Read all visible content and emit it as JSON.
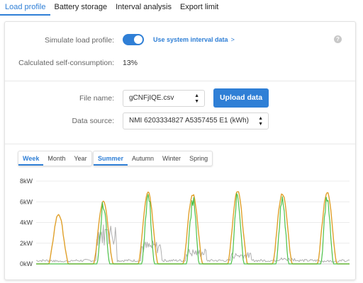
{
  "tabs": [
    {
      "label": "Load profile",
      "active": true
    },
    {
      "label": "Battery storage",
      "active": false
    },
    {
      "label": "Interval analysis",
      "active": false
    },
    {
      "label": "Export limit",
      "active": false
    }
  ],
  "simulate": {
    "label": "Simulate load profile:",
    "enabled": true,
    "link_label": "Use system interval data",
    "link_chevron": ">",
    "help_icon": "question-circle-icon"
  },
  "self_consumption": {
    "label": "Calculated self-consumption:",
    "value": "13%"
  },
  "file": {
    "label": "File name:",
    "selected": "gCNFjIQE.csv",
    "upload_label": "Upload data"
  },
  "data_source": {
    "label": "Data source:",
    "selected": "NMI 6203334827 A5357455 E1 (kWh)"
  },
  "period_filter": [
    {
      "label": "Week",
      "active": true
    },
    {
      "label": "Month",
      "active": false
    },
    {
      "label": "Year",
      "active": false
    }
  ],
  "season_filter": [
    {
      "label": "Summer",
      "active": true
    },
    {
      "label": "Autumn",
      "active": false
    },
    {
      "label": "Winter",
      "active": false
    },
    {
      "label": "Spring",
      "active": false
    }
  ],
  "colors": {
    "accent": "#2f7fd6",
    "series_orange": "#e0a02a",
    "series_green": "#4cc24a",
    "series_gray": "#b0b0b0"
  },
  "chart_data": {
    "type": "line",
    "y_tick_labels": [
      "0kW",
      "2kW",
      "4kW",
      "6kW",
      "8kW"
    ],
    "ylim": [
      0,
      8
    ],
    "xlim": [
      0,
      7
    ],
    "grid": true,
    "legend": "none",
    "series": [
      {
        "color": "#e0a02a",
        "peaks": [
          4.8,
          6.0,
          7.0,
          6.7,
          7.0,
          6.8,
          6.9
        ]
      },
      {
        "color": "#4cc24a",
        "peaks": [
          0,
          6.0,
          7.0,
          6.5,
          7.0,
          6.5,
          6.7
        ]
      },
      {
        "color": "#b0b0b0",
        "description_values": [
          0.3,
          3.2,
          1.8,
          1.2,
          0.9,
          0.5,
          0.3
        ]
      }
    ]
  }
}
